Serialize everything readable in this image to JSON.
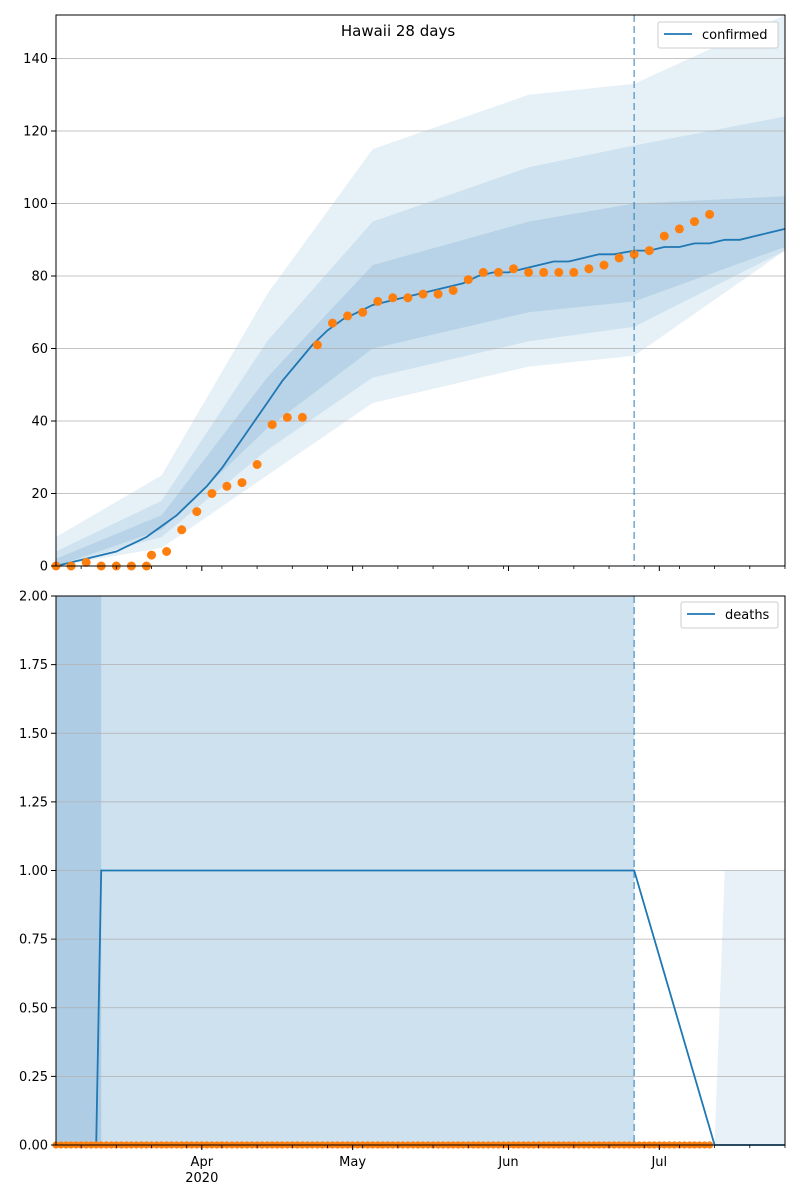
{
  "chart_data": [
    {
      "type": "line",
      "title": "Hawaii 28 days",
      "ylim": [
        0,
        152
      ],
      "yticks": [
        0,
        20,
        40,
        60,
        80,
        100,
        120,
        140
      ],
      "xlim": [
        "2020-03-03",
        "2020-07-26"
      ],
      "forecast_start": "2020-06-26",
      "legend": {
        "placement": "top-right",
        "entries": [
          "confirmed"
        ]
      },
      "grid": "horizontal",
      "colors": {
        "line": "#1f77b4",
        "points": "#ff7f0e",
        "band": "#1f77b4"
      },
      "series": [
        {
          "name": "confirmed",
          "x": [
            "2020-03-03",
            "2020-03-06",
            "2020-03-09",
            "2020-03-12",
            "2020-03-15",
            "2020-03-18",
            "2020-03-21",
            "2020-03-24",
            "2020-03-27",
            "2020-03-30",
            "2020-04-02",
            "2020-04-05",
            "2020-04-08",
            "2020-04-11",
            "2020-04-14",
            "2020-04-17",
            "2020-04-20",
            "2020-04-23",
            "2020-04-26",
            "2020-04-29",
            "2020-05-02",
            "2020-05-05",
            "2020-05-08",
            "2020-05-11",
            "2020-05-14",
            "2020-05-17",
            "2020-05-20",
            "2020-05-23",
            "2020-05-26",
            "2020-05-29",
            "2020-06-01",
            "2020-06-04",
            "2020-06-07",
            "2020-06-10",
            "2020-06-13",
            "2020-06-16",
            "2020-06-19",
            "2020-06-22",
            "2020-06-26",
            "2020-06-29",
            "2020-07-02",
            "2020-07-05",
            "2020-07-08",
            "2020-07-11",
            "2020-07-14",
            "2020-07-17",
            "2020-07-20",
            "2020-07-23",
            "2020-07-26"
          ],
          "values": [
            0,
            1,
            2,
            3,
            4,
            6,
            8,
            11,
            14,
            18,
            22,
            27,
            33,
            39,
            45,
            51,
            56,
            61,
            65,
            68,
            70,
            72,
            73,
            74,
            75,
            76,
            77,
            78,
            80,
            81,
            81,
            82,
            83,
            84,
            84,
            85,
            86,
            86,
            87,
            87,
            88,
            88,
            89,
            89,
            90,
            90,
            91,
            92,
            93
          ]
        },
        {
          "name": "observed",
          "x": [
            "2020-03-03",
            "2020-03-06",
            "2020-03-09",
            "2020-03-12",
            "2020-03-15",
            "2020-03-18",
            "2020-03-21",
            "2020-03-22",
            "2020-03-25",
            "2020-03-28",
            "2020-03-31",
            "2020-04-03",
            "2020-04-06",
            "2020-04-09",
            "2020-04-12",
            "2020-04-15",
            "2020-04-18",
            "2020-04-21",
            "2020-04-24",
            "2020-04-27",
            "2020-04-30",
            "2020-05-03",
            "2020-05-06",
            "2020-05-09",
            "2020-05-12",
            "2020-05-15",
            "2020-05-18",
            "2020-05-21",
            "2020-05-24",
            "2020-05-27",
            "2020-05-30",
            "2020-06-02",
            "2020-06-05",
            "2020-06-08",
            "2020-06-11",
            "2020-06-14",
            "2020-06-17",
            "2020-06-20",
            "2020-06-23",
            "2020-06-26",
            "2020-06-29",
            "2020-07-02",
            "2020-07-05",
            "2020-07-08",
            "2020-07-11"
          ],
          "values": [
            0,
            0,
            1,
            0,
            0,
            0,
            0,
            3,
            4,
            10,
            15,
            20,
            22,
            23,
            28,
            39,
            41,
            41,
            61,
            67,
            69,
            70,
            73,
            74,
            74,
            75,
            75,
            76,
            79,
            81,
            81,
            82,
            81,
            81,
            81,
            81,
            82,
            83,
            85,
            86,
            87,
            91,
            93,
            95,
            97
          ]
        }
      ],
      "bands": [
        {
          "level": "outer",
          "x": [
            "2020-03-03",
            "2020-03-24",
            "2020-04-14",
            "2020-05-05",
            "2020-06-05",
            "2020-06-26",
            "2020-07-26"
          ],
          "lower": [
            0,
            5,
            25,
            45,
            55,
            58,
            87
          ],
          "upper": [
            8,
            25,
            75,
            115,
            130,
            133,
            152
          ]
        },
        {
          "level": "middle",
          "x": [
            "2020-03-03",
            "2020-03-24",
            "2020-04-14",
            "2020-05-05",
            "2020-06-05",
            "2020-06-26",
            "2020-07-26"
          ],
          "lower": [
            0,
            8,
            32,
            52,
            62,
            66,
            87
          ],
          "upper": [
            4,
            18,
            62,
            95,
            110,
            116,
            124
          ]
        },
        {
          "level": "inner",
          "x": [
            "2020-03-03",
            "2020-03-24",
            "2020-04-14",
            "2020-05-05",
            "2020-06-05",
            "2020-06-26",
            "2020-07-26"
          ],
          "lower": [
            0,
            10,
            38,
            60,
            70,
            73,
            88
          ],
          "upper": [
            2,
            14,
            52,
            83,
            95,
            100,
            102
          ]
        }
      ]
    },
    {
      "type": "line",
      "ylim": [
        0,
        2
      ],
      "yticks": [
        "0.00",
        "0.25",
        "0.50",
        "0.75",
        "1.00",
        "1.25",
        "1.50",
        "1.75",
        "2.00"
      ],
      "xlim": [
        "2020-03-03",
        "2020-07-26"
      ],
      "xticks": [
        "Apr",
        "May",
        "Jun",
        "Jul"
      ],
      "xtick_sub": "2020",
      "forecast_start": "2020-06-26",
      "legend": {
        "placement": "top-right",
        "entries": [
          "deaths"
        ]
      },
      "grid": "horizontal",
      "series": [
        {
          "name": "deaths",
          "x": [
            "2020-03-03",
            "2020-03-11",
            "2020-03-12",
            "2020-06-26",
            "2020-07-12",
            "2020-07-26"
          ],
          "values": [
            0,
            0,
            1,
            1,
            0,
            0
          ]
        },
        {
          "name": "observed",
          "x_range": [
            "2020-03-03",
            "2020-07-11"
          ],
          "value": 0
        }
      ]
    }
  ]
}
